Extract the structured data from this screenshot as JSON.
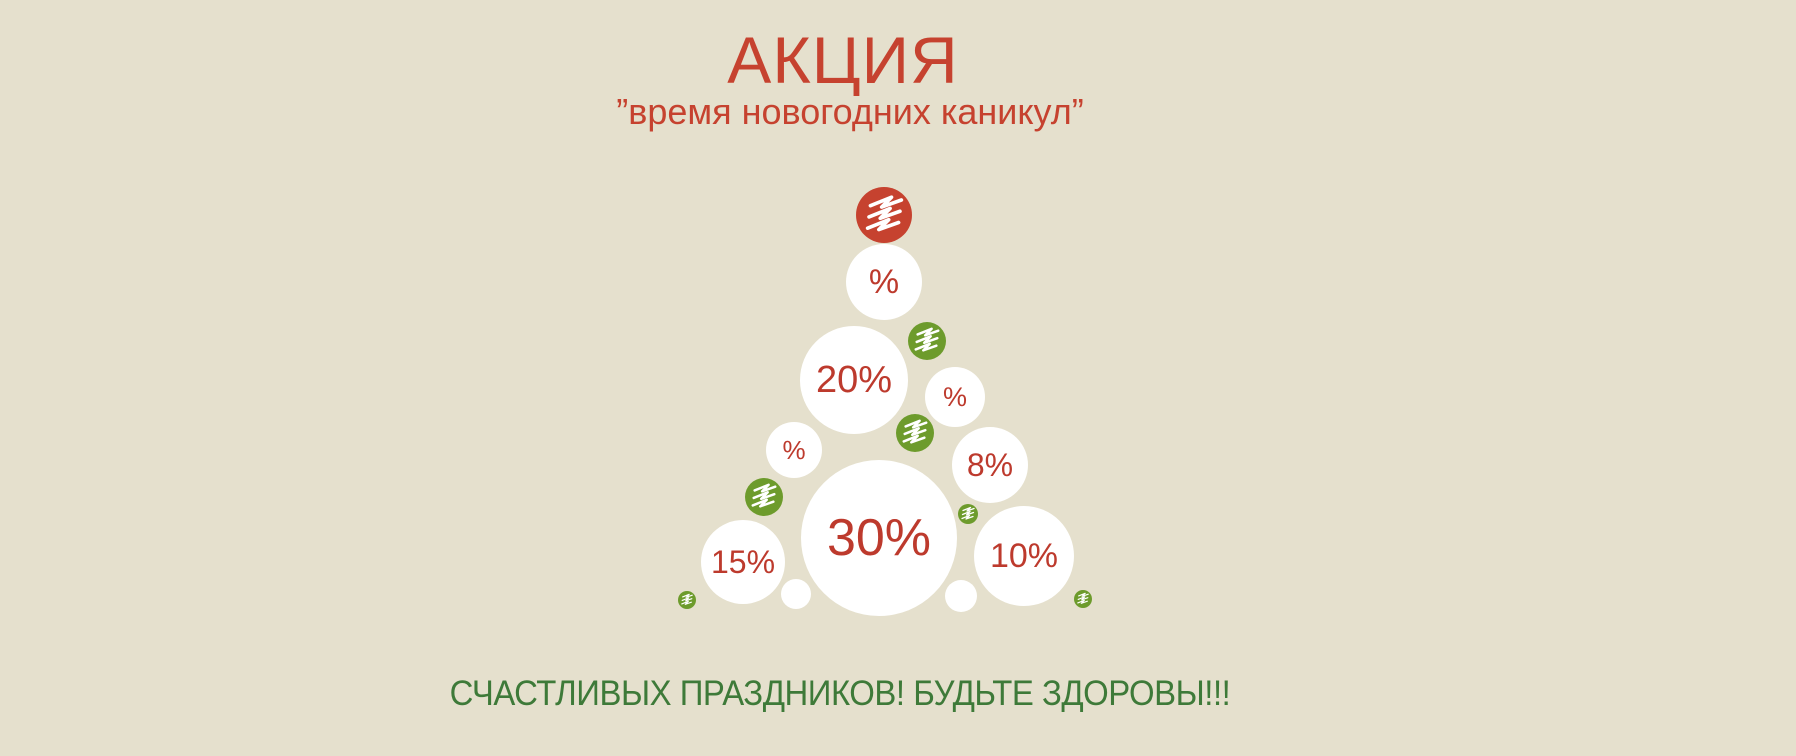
{
  "banner": {
    "title": "АКЦИЯ",
    "subtitle": "”время новогодних каникул”",
    "footer": "СЧАСТЛИВЫХ ПРАЗДНИКОВ! БУДЬТЕ ЗДОРОВЫ!!!"
  },
  "palette": {
    "background": "#e5e0cd",
    "red": "#c6422f",
    "text_red": "#bd3a2d",
    "green": "#6d9b2c",
    "text_green": "#3e7a39",
    "white": "#ffffff"
  },
  "tree": {
    "bubbles": [
      {
        "id": "logo-top",
        "kind": "logo-red",
        "icon": "brand-zigzag-icon"
      },
      {
        "id": "pct-top",
        "kind": "discount",
        "label": "%"
      },
      {
        "id": "logo-right",
        "kind": "logo-green",
        "icon": "brand-zigzag-icon"
      },
      {
        "id": "disc-20",
        "kind": "discount",
        "label": "20%"
      },
      {
        "id": "pct-right",
        "kind": "discount",
        "label": "%"
      },
      {
        "id": "logo-mid",
        "kind": "logo-green",
        "icon": "brand-zigzag-icon"
      },
      {
        "id": "pct-left",
        "kind": "discount",
        "label": "%"
      },
      {
        "id": "disc-8",
        "kind": "discount",
        "label": "8%"
      },
      {
        "id": "logo-left",
        "kind": "logo-green",
        "icon": "brand-zigzag-icon"
      },
      {
        "id": "logo-tiny-mid",
        "kind": "logo-green",
        "icon": "brand-zigzag-icon"
      },
      {
        "id": "disc-30",
        "kind": "discount",
        "label": "30%"
      },
      {
        "id": "disc-15",
        "kind": "discount",
        "label": "15%"
      },
      {
        "id": "disc-10",
        "kind": "discount",
        "label": "10%"
      },
      {
        "id": "plain-left",
        "kind": "plain"
      },
      {
        "id": "plain-right",
        "kind": "plain"
      },
      {
        "id": "logo-tiny-bl",
        "kind": "logo-green",
        "icon": "brand-zigzag-icon"
      },
      {
        "id": "logo-tiny-br",
        "kind": "logo-green",
        "icon": "brand-zigzag-icon"
      }
    ]
  }
}
